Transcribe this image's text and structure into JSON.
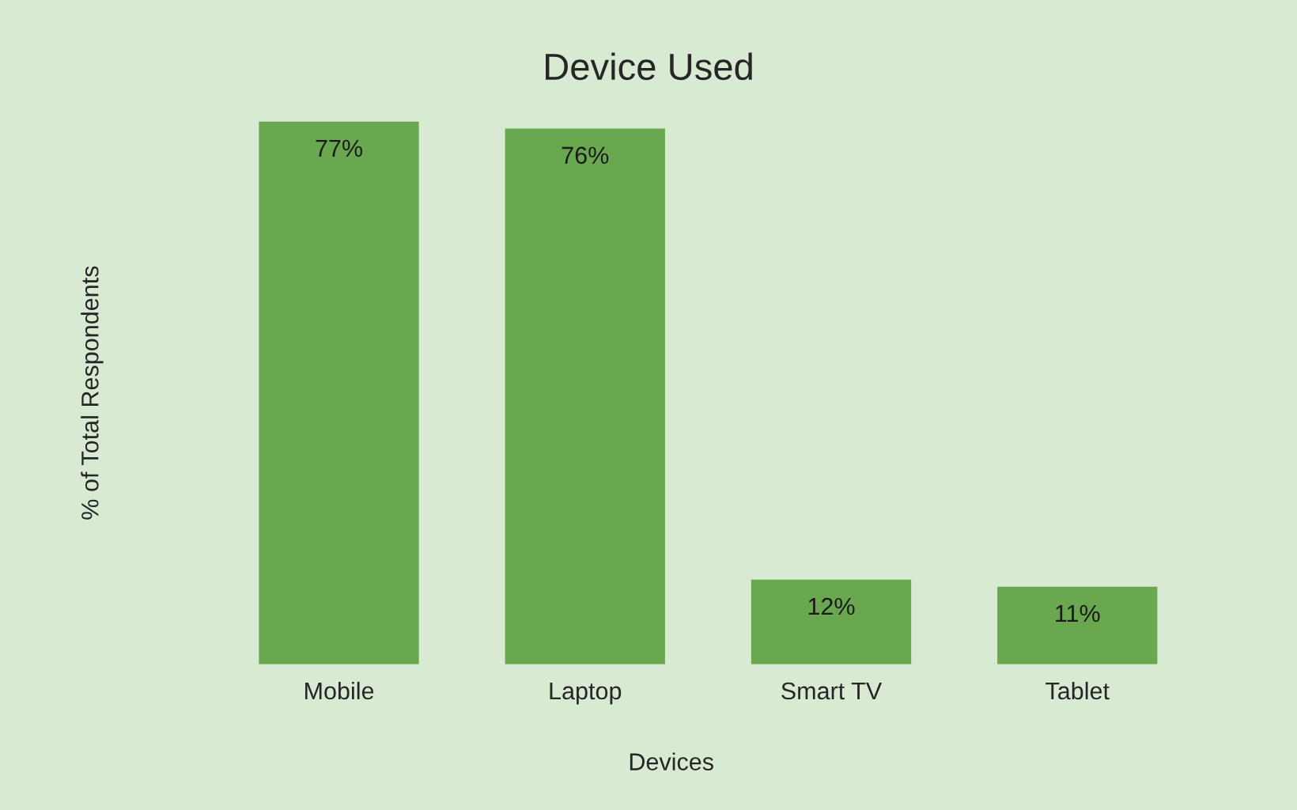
{
  "chart_data": {
    "type": "bar",
    "title": "Device Used",
    "xlabel": "Devices",
    "ylabel": "% of Total Respondents",
    "categories": [
      "Mobile",
      "Laptop",
      "Smart TV",
      "Tablet"
    ],
    "values": [
      77,
      76,
      12,
      11
    ],
    "value_labels": [
      "77%",
      "76%",
      "12%",
      "11%"
    ],
    "color": "#6aa84f",
    "grid": false,
    "legend": false
  }
}
